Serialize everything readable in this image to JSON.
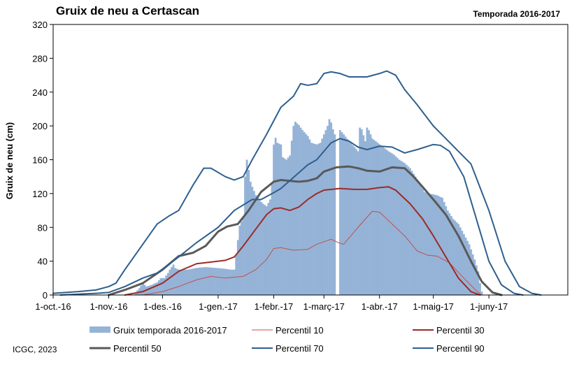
{
  "chart_data": {
    "type": "bar+line",
    "title": "Gruix de neu a Certascan",
    "subtitle": "Temporada 2016-2017",
    "ylabel": "Gruix de neu (cm)",
    "xlabel": "",
    "ylim": [
      0,
      320
    ],
    "yticks": [
      0,
      40,
      80,
      120,
      160,
      200,
      240,
      280,
      320
    ],
    "x_start": "2016-10-01",
    "x_end": "2017-07-15",
    "x_tick_dates": [
      "2016-10-01",
      "2016-11-01",
      "2016-12-01",
      "2017-01-01",
      "2017-02-01",
      "2017-03-01",
      "2017-04-01",
      "2017-05-01",
      "2017-06-01"
    ],
    "x_tick_labels": [
      "1-oct.-16",
      "1-nov.-16",
      "1-des.-16",
      "1-gen.-17",
      "1-febr.-17",
      "1-març-17",
      "1-abr.-17",
      "1-maig-17",
      "1-juny-17"
    ],
    "grid": false,
    "bars": {
      "name": "Gruix temporada 2016-2017",
      "color": "#95b3d7",
      "points": [
        [
          "2016-11-15",
          0
        ],
        [
          "2016-11-16",
          3
        ],
        [
          "2016-11-18",
          8
        ],
        [
          "2016-11-20",
          14
        ],
        [
          "2016-11-22",
          10
        ],
        [
          "2016-11-25",
          12
        ],
        [
          "2016-11-28",
          15
        ],
        [
          "2016-11-30",
          20
        ],
        [
          "2016-12-02",
          20
        ],
        [
          "2016-12-04",
          26
        ],
        [
          "2016-12-05",
          30
        ],
        [
          "2016-12-07",
          36
        ],
        [
          "2016-12-08",
          32
        ],
        [
          "2016-12-10",
          30
        ],
        [
          "2016-12-15",
          30
        ],
        [
          "2016-12-20",
          32
        ],
        [
          "2016-12-25",
          33
        ],
        [
          "2016-12-31",
          32
        ],
        [
          "2017-01-05",
          31
        ],
        [
          "2017-01-08",
          30
        ],
        [
          "2017-01-10",
          30
        ],
        [
          "2017-01-12",
          65
        ],
        [
          "2017-01-13",
          82
        ],
        [
          "2017-01-15",
          92
        ],
        [
          "2017-01-16",
          140
        ],
        [
          "2017-01-17",
          160
        ],
        [
          "2017-01-18",
          148
        ],
        [
          "2017-01-19",
          134
        ],
        [
          "2017-01-20",
          128
        ],
        [
          "2017-01-22",
          118
        ],
        [
          "2017-01-24",
          112
        ],
        [
          "2017-01-26",
          108
        ],
        [
          "2017-01-28",
          105
        ],
        [
          "2017-01-30",
          113
        ],
        [
          "2017-01-31",
          132
        ],
        [
          "2017-02-01",
          178
        ],
        [
          "2017-02-02",
          186
        ],
        [
          "2017-02-03",
          180
        ],
        [
          "2017-02-05",
          178
        ],
        [
          "2017-02-06",
          163
        ],
        [
          "2017-02-08",
          160
        ],
        [
          "2017-02-10",
          165
        ],
        [
          "2017-02-12",
          200
        ],
        [
          "2017-02-13",
          205
        ],
        [
          "2017-02-15",
          201
        ],
        [
          "2017-02-17",
          195
        ],
        [
          "2017-02-20",
          188
        ],
        [
          "2017-02-22",
          180
        ],
        [
          "2017-02-25",
          178
        ],
        [
          "2017-02-27",
          180
        ],
        [
          "2017-03-01",
          190
        ],
        [
          "2017-03-03",
          200
        ],
        [
          "2017-03-04",
          208
        ],
        [
          "2017-03-05",
          204
        ],
        [
          "2017-03-06",
          196
        ],
        [
          "2017-03-07",
          190
        ],
        [
          "2017-03-08",
          0
        ],
        [
          "2017-03-09",
          0
        ],
        [
          "2017-03-10",
          195
        ],
        [
          "2017-03-12",
          190
        ],
        [
          "2017-03-15",
          182
        ],
        [
          "2017-03-18",
          175
        ],
        [
          "2017-03-20",
          170
        ],
        [
          "2017-03-21",
          198
        ],
        [
          "2017-03-22",
          196
        ],
        [
          "2017-03-24",
          182
        ],
        [
          "2017-03-25",
          198
        ],
        [
          "2017-03-26",
          195
        ],
        [
          "2017-03-28",
          185
        ],
        [
          "2017-03-31",
          180
        ],
        [
          "2017-04-03",
          175
        ],
        [
          "2017-04-06",
          170
        ],
        [
          "2017-04-09",
          166
        ],
        [
          "2017-04-12",
          160
        ],
        [
          "2017-04-15",
          156
        ],
        [
          "2017-04-18",
          150
        ],
        [
          "2017-04-21",
          140
        ],
        [
          "2017-04-24",
          130
        ],
        [
          "2017-04-26",
          122
        ],
        [
          "2017-04-28",
          120
        ],
        [
          "2017-05-01",
          119
        ],
        [
          "2017-05-03",
          118
        ],
        [
          "2017-05-06",
          115
        ],
        [
          "2017-05-09",
          100
        ],
        [
          "2017-05-12",
          90
        ],
        [
          "2017-05-15",
          84
        ],
        [
          "2017-05-18",
          72
        ],
        [
          "2017-05-21",
          60
        ],
        [
          "2017-05-24",
          42
        ],
        [
          "2017-05-26",
          28
        ],
        [
          "2017-05-27",
          14
        ],
        [
          "2017-05-28",
          4
        ],
        [
          "2017-05-29",
          0
        ]
      ]
    },
    "series": [
      {
        "name": "Percentil 10",
        "color": "#c0504d",
        "width": 1,
        "points": [
          [
            "2016-11-20",
            0
          ],
          [
            "2016-12-01",
            4
          ],
          [
            "2016-12-10",
            10
          ],
          [
            "2016-12-20",
            18
          ],
          [
            "2016-12-28",
            22
          ],
          [
            "2017-01-05",
            20
          ],
          [
            "2017-01-15",
            22
          ],
          [
            "2017-01-22",
            30
          ],
          [
            "2017-01-28",
            42
          ],
          [
            "2017-02-01",
            55
          ],
          [
            "2017-02-05",
            56
          ],
          [
            "2017-02-12",
            53
          ],
          [
            "2017-02-20",
            54
          ],
          [
            "2017-02-25",
            60
          ],
          [
            "2017-03-01",
            63
          ],
          [
            "2017-03-05",
            66
          ],
          [
            "2017-03-09",
            62
          ],
          [
            "2017-03-12",
            60
          ],
          [
            "2017-03-20",
            80
          ],
          [
            "2017-03-25",
            92
          ],
          [
            "2017-03-28",
            99
          ],
          [
            "2017-04-01",
            98
          ],
          [
            "2017-04-06",
            88
          ],
          [
            "2017-04-15",
            70
          ],
          [
            "2017-04-22",
            52
          ],
          [
            "2017-04-28",
            47
          ],
          [
            "2017-05-03",
            46
          ],
          [
            "2017-05-10",
            38
          ],
          [
            "2017-05-18",
            20
          ],
          [
            "2017-05-25",
            5
          ],
          [
            "2017-05-28",
            0
          ]
        ]
      },
      {
        "name": "Percentil 30",
        "color": "#9c2b28",
        "width": 2,
        "points": [
          [
            "2016-11-10",
            0
          ],
          [
            "2016-11-20",
            4
          ],
          [
            "2016-12-01",
            14
          ],
          [
            "2016-12-10",
            28
          ],
          [
            "2016-12-20",
            37
          ],
          [
            "2016-12-28",
            39
          ],
          [
            "2017-01-05",
            41
          ],
          [
            "2017-01-10",
            45
          ],
          [
            "2017-01-15",
            58
          ],
          [
            "2017-01-22",
            78
          ],
          [
            "2017-01-28",
            95
          ],
          [
            "2017-02-01",
            102
          ],
          [
            "2017-02-05",
            103
          ],
          [
            "2017-02-10",
            100
          ],
          [
            "2017-02-15",
            104
          ],
          [
            "2017-02-20",
            113
          ],
          [
            "2017-02-25",
            120
          ],
          [
            "2017-03-01",
            124
          ],
          [
            "2017-03-10",
            126
          ],
          [
            "2017-03-18",
            125
          ],
          [
            "2017-03-25",
            125
          ],
          [
            "2017-04-01",
            127
          ],
          [
            "2017-04-06",
            128
          ],
          [
            "2017-04-10",
            124
          ],
          [
            "2017-04-18",
            108
          ],
          [
            "2017-04-25",
            90
          ],
          [
            "2017-05-01",
            70
          ],
          [
            "2017-05-08",
            45
          ],
          [
            "2017-05-15",
            20
          ],
          [
            "2017-05-22",
            4
          ],
          [
            "2017-05-27",
            0
          ]
        ]
      },
      {
        "name": "Percentil 50",
        "color": "#595959",
        "width": 3,
        "points": [
          [
            "2016-11-01",
            0
          ],
          [
            "2016-11-10",
            6
          ],
          [
            "2016-11-20",
            14
          ],
          [
            "2016-12-01",
            30
          ],
          [
            "2016-12-10",
            46
          ],
          [
            "2016-12-18",
            50
          ],
          [
            "2016-12-25",
            58
          ],
          [
            "2017-01-01",
            75
          ],
          [
            "2017-01-06",
            81
          ],
          [
            "2017-01-12",
            84
          ],
          [
            "2017-01-18",
            100
          ],
          [
            "2017-01-25",
            122
          ],
          [
            "2017-02-01",
            134
          ],
          [
            "2017-02-05",
            136
          ],
          [
            "2017-02-10",
            135
          ],
          [
            "2017-02-15",
            134
          ],
          [
            "2017-02-20",
            135
          ],
          [
            "2017-02-25",
            138
          ],
          [
            "2017-03-01",
            146
          ],
          [
            "2017-03-08",
            151
          ],
          [
            "2017-03-15",
            152
          ],
          [
            "2017-03-20",
            150
          ],
          [
            "2017-03-25",
            147
          ],
          [
            "2017-04-01",
            146
          ],
          [
            "2017-04-08",
            151
          ],
          [
            "2017-04-15",
            150
          ],
          [
            "2017-04-20",
            140
          ],
          [
            "2017-04-25",
            128
          ],
          [
            "2017-05-01",
            113
          ],
          [
            "2017-05-08",
            95
          ],
          [
            "2017-05-15",
            70
          ],
          [
            "2017-05-22",
            40
          ],
          [
            "2017-05-28",
            16
          ],
          [
            "2017-06-03",
            3
          ],
          [
            "2017-06-08",
            0
          ]
        ]
      },
      {
        "name": "Percentil 70",
        "color": "#2e5f8e",
        "width": 2,
        "points": [
          [
            "2016-10-05",
            0
          ],
          [
            "2016-10-25",
            2
          ],
          [
            "2016-11-01",
            3
          ],
          [
            "2016-11-10",
            10
          ],
          [
            "2016-11-20",
            20
          ],
          [
            "2016-11-28",
            26
          ],
          [
            "2016-12-10",
            45
          ],
          [
            "2016-12-20",
            62
          ],
          [
            "2017-01-01",
            80
          ],
          [
            "2017-01-10",
            100
          ],
          [
            "2017-01-20",
            113
          ],
          [
            "2017-01-25",
            113
          ],
          [
            "2017-02-01",
            121
          ],
          [
            "2017-02-05",
            126
          ],
          [
            "2017-02-12",
            139
          ],
          [
            "2017-02-20",
            154
          ],
          [
            "2017-02-25",
            160
          ],
          [
            "2017-03-01",
            170
          ],
          [
            "2017-03-05",
            180
          ],
          [
            "2017-03-10",
            185
          ],
          [
            "2017-03-15",
            182
          ],
          [
            "2017-03-20",
            175
          ],
          [
            "2017-03-25",
            172
          ],
          [
            "2017-04-01",
            176
          ],
          [
            "2017-04-08",
            175
          ],
          [
            "2017-04-15",
            168
          ],
          [
            "2017-04-22",
            172
          ],
          [
            "2017-05-01",
            178
          ],
          [
            "2017-05-05",
            177
          ],
          [
            "2017-05-10",
            170
          ],
          [
            "2017-05-18",
            140
          ],
          [
            "2017-05-25",
            90
          ],
          [
            "2017-06-01",
            40
          ],
          [
            "2017-06-08",
            12
          ],
          [
            "2017-06-15",
            2
          ],
          [
            "2017-06-20",
            0
          ]
        ]
      },
      {
        "name": "Percentil 90",
        "color": "#2e5f8e",
        "width": 2,
        "points": [
          [
            "2016-10-01",
            2
          ],
          [
            "2016-10-15",
            4
          ],
          [
            "2016-10-25",
            6
          ],
          [
            "2016-11-01",
            10
          ],
          [
            "2016-11-05",
            14
          ],
          [
            "2016-11-10",
            30
          ],
          [
            "2016-11-20",
            60
          ],
          [
            "2016-11-28",
            84
          ],
          [
            "2016-12-05",
            94
          ],
          [
            "2016-12-10",
            100
          ],
          [
            "2016-12-18",
            130
          ],
          [
            "2016-12-24",
            150
          ],
          [
            "2016-12-28",
            150
          ],
          [
            "2017-01-05",
            140
          ],
          [
            "2017-01-10",
            136
          ],
          [
            "2017-01-15",
            140
          ],
          [
            "2017-01-20",
            160
          ],
          [
            "2017-01-28",
            190
          ],
          [
            "2017-02-05",
            222
          ],
          [
            "2017-02-12",
            235
          ],
          [
            "2017-02-16",
            250
          ],
          [
            "2017-02-20",
            248
          ],
          [
            "2017-02-25",
            250
          ],
          [
            "2017-03-01",
            262
          ],
          [
            "2017-03-05",
            264
          ],
          [
            "2017-03-10",
            262
          ],
          [
            "2017-03-15",
            258
          ],
          [
            "2017-03-20",
            258
          ],
          [
            "2017-03-25",
            258
          ],
          [
            "2017-04-01",
            262
          ],
          [
            "2017-04-05",
            265
          ],
          [
            "2017-04-10",
            260
          ],
          [
            "2017-04-15",
            243
          ],
          [
            "2017-04-22",
            225
          ],
          [
            "2017-05-01",
            200
          ],
          [
            "2017-05-08",
            185
          ],
          [
            "2017-05-15",
            170
          ],
          [
            "2017-05-22",
            155
          ],
          [
            "2017-06-01",
            100
          ],
          [
            "2017-06-10",
            40
          ],
          [
            "2017-06-18",
            10
          ],
          [
            "2017-06-25",
            2
          ],
          [
            "2017-06-30",
            0
          ]
        ]
      }
    ],
    "legend": {
      "placement": "bottom",
      "items": [
        "Gruix temporada 2016-2017",
        "Percentil 10",
        "Percentil 30",
        "Percentil 50",
        "Percentil 70",
        "Percentil 90"
      ]
    }
  },
  "credit": "ICGC, 2023"
}
